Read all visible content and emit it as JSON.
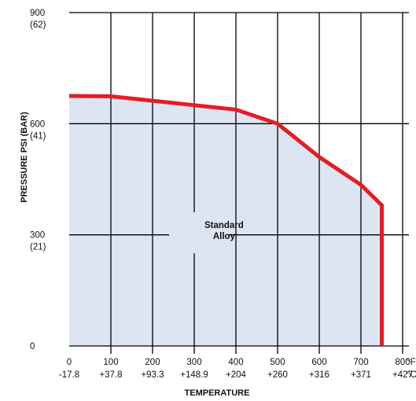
{
  "chart_data": {
    "type": "area",
    "xlabel": "TEMPERATURE",
    "ylabel": "PRESSURE PSI (BAR)",
    "xlim": [
      0,
      900
    ],
    "ylim": [
      0,
      900
    ],
    "x_ticks": [
      {
        "value": 0,
        "top": "0",
        "bottom": "-17.8"
      },
      {
        "value": 100,
        "top": "100",
        "bottom": "+37.8"
      },
      {
        "value": 200,
        "top": "200",
        "bottom": "+93.3"
      },
      {
        "value": 300,
        "top": "300",
        "bottom": "+148.9"
      },
      {
        "value": 400,
        "top": "400",
        "bottom": "+204"
      },
      {
        "value": 500,
        "top": "500",
        "bottom": "+260"
      },
      {
        "value": 600,
        "top": "600",
        "bottom": "+316"
      },
      {
        "value": 700,
        "top": "700",
        "bottom": "+371"
      },
      {
        "value": 800,
        "top": "800",
        "bottom": "+427"
      }
    ],
    "x_units": {
      "top": "°F",
      "bottom": "°C"
    },
    "y_ticks": [
      {
        "value": 0,
        "top": "0",
        "bottom": ""
      },
      {
        "value": 300,
        "top": "300",
        "bottom": "(21)"
      },
      {
        "value": 600,
        "top": "600",
        "bottom": "(41)"
      },
      {
        "value": 900,
        "top": "900",
        "bottom": "(62)"
      }
    ],
    "grid": true,
    "series": [
      {
        "x": [
          0,
          100,
          200,
          300,
          400,
          500,
          600,
          700,
          750,
          750
        ],
        "y": [
          675,
          674,
          662,
          650,
          638,
          600,
          510,
          435,
          380,
          0
        ],
        "color": "#e41d25",
        "fill": "#dde5f2"
      }
    ],
    "annotations": [
      {
        "text": [
          "Standard",
          "Alloy"
        ],
        "x": 330,
        "y": 295
      }
    ]
  }
}
